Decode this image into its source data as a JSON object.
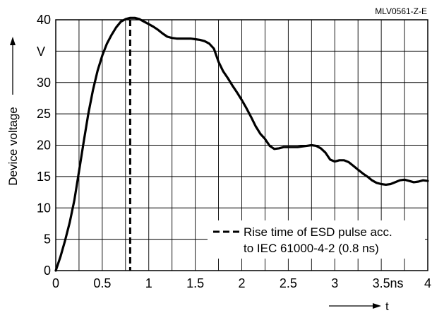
{
  "figure_id": "MLV0561-Z-E",
  "chart_data": {
    "type": "line",
    "ylabel": "Device voltage",
    "xlabel": "t",
    "x_unit": "ns",
    "y_unit": "V",
    "xlim": [
      0,
      4
    ],
    "ylim": [
      0,
      40
    ],
    "x_ticks": [
      "0",
      "0.5",
      "1",
      "1.5",
      "2",
      "2.5",
      "3",
      "3.5",
      "4"
    ],
    "y_ticks": [
      "0",
      "5",
      "10",
      "15",
      "20",
      "25",
      "30",
      "",
      "40"
    ],
    "grid": true,
    "series": [
      {
        "x": [
          0,
          0.05,
          0.1,
          0.15,
          0.2,
          0.25,
          0.3,
          0.35,
          0.4,
          0.45,
          0.5,
          0.55,
          0.6,
          0.65,
          0.7,
          0.75,
          0.8,
          0.85,
          0.9,
          0.95,
          1.0,
          1.05,
          1.1,
          1.15,
          1.2,
          1.25,
          1.3,
          1.35,
          1.4,
          1.45,
          1.5,
          1.55,
          1.6,
          1.65,
          1.7,
          1.75,
          1.8,
          1.85,
          1.9,
          1.95,
          2.0,
          2.05,
          2.1,
          2.15,
          2.2,
          2.25,
          2.3,
          2.35,
          2.4,
          2.45,
          2.5,
          2.55,
          2.6,
          2.65,
          2.7,
          2.75,
          2.8,
          2.85,
          2.9,
          2.95,
          3.0,
          3.05,
          3.1,
          3.15,
          3.2,
          3.25,
          3.3,
          3.35,
          3.4,
          3.45,
          3.5,
          3.55,
          3.6,
          3.65,
          3.7,
          3.75,
          3.8,
          3.85,
          3.9,
          3.95,
          4.0
        ],
        "y": [
          0,
          2.2,
          4.8,
          7.7,
          11.2,
          15.8,
          20.5,
          25.0,
          28.8,
          31.9,
          34.3,
          36.2,
          37.6,
          38.8,
          39.7,
          40.1,
          40.3,
          40.3,
          40.1,
          39.7,
          39.3,
          38.9,
          38.4,
          37.8,
          37.3,
          37.1,
          37.0,
          37.0,
          37.0,
          37.0,
          36.9,
          36.8,
          36.6,
          36.2,
          35.4,
          33.3,
          31.8,
          30.7,
          29.5,
          28.4,
          27.2,
          25.9,
          24.5,
          23.0,
          21.8,
          21.0,
          19.9,
          19.4,
          19.5,
          19.7,
          19.7,
          19.7,
          19.7,
          19.8,
          19.9,
          20.0,
          19.9,
          19.5,
          18.8,
          17.7,
          17.4,
          17.6,
          17.6,
          17.3,
          16.7,
          16.1,
          15.5,
          15.0,
          14.4,
          14.0,
          13.8,
          13.7,
          13.8,
          14.1,
          14.4,
          14.5,
          14.3,
          14.1,
          14.2,
          14.4,
          14.3
        ]
      }
    ],
    "annotations": {
      "rise_time_x": 0.8,
      "legend_line1": "Rise time of ESD pulse acc.",
      "legend_line2": "to IEC 61000-4-2 (0.8 ns)"
    }
  }
}
